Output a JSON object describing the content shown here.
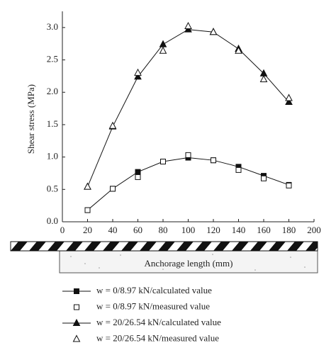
{
  "chart_data": {
    "type": "line",
    "ylabel": "Shear stress (MPa)",
    "xlabel": "Anchorage length (mm)",
    "xlim": [
      0,
      200
    ],
    "xticks": [
      0,
      20,
      40,
      60,
      80,
      100,
      120,
      140,
      160,
      180,
      200
    ],
    "ylim": [
      0,
      3.25
    ],
    "yticks": [
      {
        "value": 0,
        "label": "0.0"
      },
      0.5,
      {
        "value": 1,
        "label": "1.0"
      },
      1.5,
      {
        "value": 2,
        "label": "2.0"
      },
      2.5,
      {
        "value": 3,
        "label": "3.0"
      }
    ],
    "x": [
      20,
      40,
      60,
      80,
      100,
      120,
      140,
      160,
      180
    ],
    "series": [
      {
        "name": "w = 0/8.97 kN/calculated value",
        "color": "#111",
        "marker": "square",
        "filled": true,
        "line": true,
        "values": [
          0.18,
          0.51,
          0.77,
          0.93,
          0.99,
          0.95,
          0.85,
          0.71,
          0.57
        ]
      },
      {
        "name": "w = 0/8.97 kN/measured value",
        "color": "#111",
        "marker": "square",
        "filled": false,
        "line": false,
        "values": [
          0.18,
          0.51,
          0.69,
          0.93,
          1.03,
          0.95,
          0.8,
          0.67,
          0.56
        ]
      },
      {
        "name": "w = 20/26.54 kN/calculated value",
        "color": "#111",
        "marker": "triangle",
        "filled": true,
        "line": true,
        "values": [
          0.54,
          1.47,
          2.24,
          2.74,
          2.97,
          2.93,
          2.67,
          2.29,
          1.85
        ]
      },
      {
        "name": "w = 20/26.54 kN/measured value",
        "color": "#111",
        "marker": "triangle",
        "filled": false,
        "line": false,
        "values": [
          0.54,
          1.48,
          2.3,
          2.64,
          3.02,
          2.93,
          2.64,
          2.2,
          1.91
        ]
      }
    ]
  }
}
